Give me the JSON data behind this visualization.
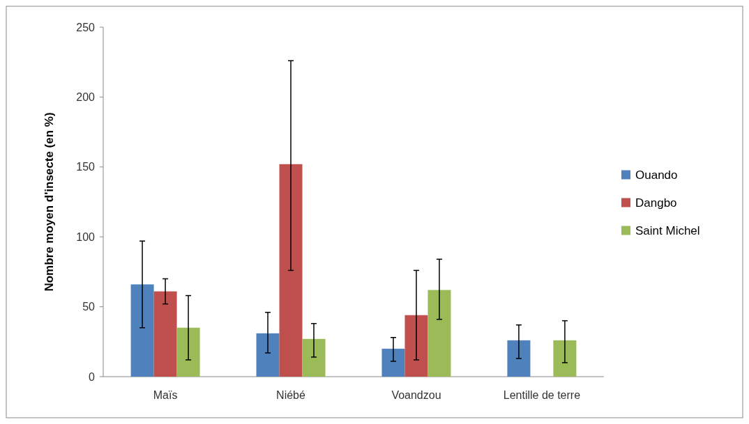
{
  "chart_data": {
    "type": "bar",
    "ylabel": "Nombre moyen d'insecte (en %)",
    "categories": [
      "Maïs",
      "Niébé",
      "Voandzou",
      "Lentille de terre"
    ],
    "series": [
      {
        "name": "Ouando",
        "color": "#4f81bd",
        "values": [
          66,
          31,
          20,
          26
        ],
        "errors": [
          [
            35,
            97
          ],
          [
            17,
            46
          ],
          [
            11,
            28
          ],
          [
            13,
            37
          ]
        ]
      },
      {
        "name": "Dangbo",
        "color": "#c0504d",
        "values": [
          61,
          152,
          44,
          null
        ],
        "errors": [
          [
            52,
            70
          ],
          [
            76,
            226
          ],
          [
            12,
            76
          ],
          null
        ]
      },
      {
        "name": "Saint Michel",
        "color": "#9bbb59",
        "values": [
          35,
          27,
          62,
          26
        ],
        "errors": [
          [
            12,
            58
          ],
          [
            14,
            38
          ],
          [
            41,
            84
          ],
          [
            10,
            40
          ]
        ]
      }
    ],
    "ylim": [
      0,
      250
    ],
    "yticks": [
      0,
      50,
      100,
      150,
      200,
      250
    ],
    "grid": false,
    "legend": "right"
  }
}
